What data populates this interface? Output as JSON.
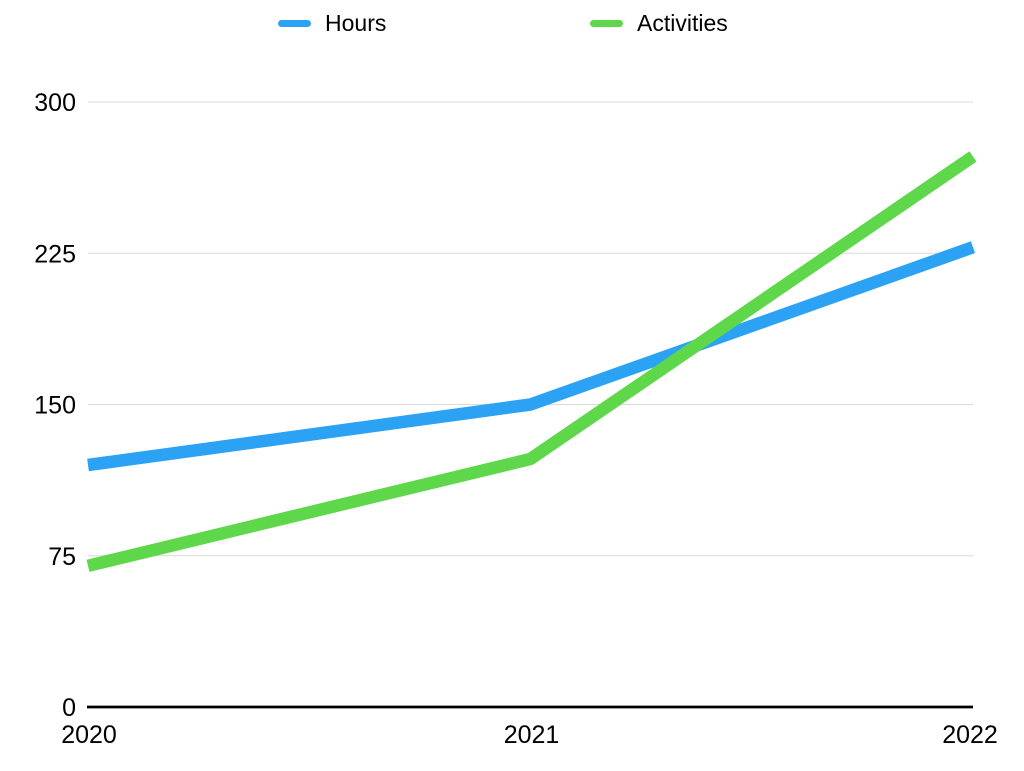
{
  "chart_data": {
    "type": "line",
    "title": "",
    "xlabel": "",
    "ylabel": "",
    "x_categories": [
      "2020",
      "2021",
      "2022"
    ],
    "series": [
      {
        "name": "Hours",
        "color": "#2CA2F4",
        "values": [
          120,
          150,
          228
        ]
      },
      {
        "name": "Activities",
        "color": "#5ED84A",
        "values": [
          70,
          123,
          273
        ]
      }
    ],
    "y_ticks": [
      0,
      75,
      150,
      225,
      300
    ],
    "ylim": [
      0,
      300
    ],
    "grid": "horizontal-only",
    "gridline_color": "#d9d9d9",
    "axis_color": "#000000",
    "legend_position": "top",
    "line_width": 12.5
  }
}
